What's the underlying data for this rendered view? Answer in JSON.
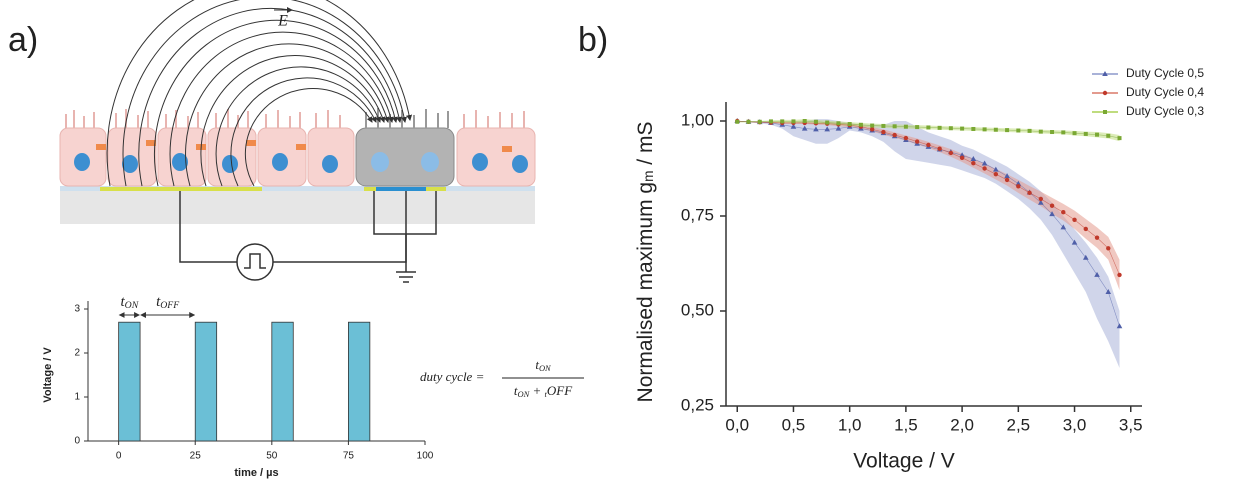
{
  "panel_labels": [
    "a)",
    "b)"
  ],
  "diagram": {
    "field_label": "E"
  },
  "formula": {
    "lhs": "duty cycle =",
    "numerator": [
      "t",
      "ON"
    ],
    "denominator": [
      "t",
      "ON",
      " + ",
      "t",
      "OFF"
    ]
  },
  "chart_data": [
    {
      "type": "bar",
      "xlabel": "time / µs",
      "ylabel": "Voltage / V",
      "color": "#6bbfd6",
      "x_start": [
        0,
        25,
        50,
        75
      ],
      "x_end": [
        7,
        32,
        57,
        82
      ],
      "values": [
        2.7,
        2.7,
        2.7,
        2.7
      ],
      "xlim": [
        -10,
        100
      ],
      "xticks": [
        0,
        25,
        50,
        75,
        100
      ],
      "ylim": [
        0,
        3
      ],
      "yticks": [
        0,
        1,
        2,
        3
      ],
      "annotations": [
        [
          "t",
          "ON"
        ],
        [
          "t",
          "OFF"
        ]
      ]
    },
    {
      "type": "line",
      "xlabel": "Voltage / V",
      "ylabel": [
        "Normalised maximum g",
        "m",
        " / mS"
      ],
      "legend": "top-right",
      "xlim": [
        -0.1,
        3.6
      ],
      "ylim": [
        0.25,
        1.05
      ],
      "xticks": [
        {
          "value": 0,
          "label": "0,0"
        },
        {
          "value": 0.5,
          "label": "0,5"
        },
        {
          "value": 1,
          "label": "1,0"
        },
        {
          "value": 1.5,
          "label": "1,5"
        },
        {
          "value": 2,
          "label": "2,0"
        },
        {
          "value": 2.5,
          "label": "2,5"
        },
        {
          "value": 3,
          "label": "3,0"
        },
        {
          "value": 3.5,
          "label": "3,5"
        }
      ],
      "yticks": [
        {
          "value": 0.25,
          "label": "0,25"
        },
        {
          "value": 0.5,
          "label": "0,50"
        },
        {
          "value": 0.75,
          "label": "0,75"
        },
        {
          "value": 1,
          "label": "1,00"
        }
      ],
      "x": [
        0,
        0.1,
        0.2,
        0.3,
        0.4,
        0.5,
        0.6,
        0.7,
        0.8,
        0.9,
        1.0,
        1.1,
        1.2,
        1.3,
        1.4,
        1.5,
        1.6,
        1.7,
        1.8,
        1.9,
        2.0,
        2.1,
        2.2,
        2.3,
        2.4,
        2.5,
        2.6,
        2.7,
        2.8,
        2.9,
        3.0,
        3.1,
        3.2,
        3.3,
        3.4
      ],
      "series": [
        {
          "name": "Duty Cycle 0,5",
          "color": "#4f5fa8",
          "band_color": "#a9b2d8",
          "marker": "triangle",
          "values": [
            1.0,
            0.998,
            0.997,
            0.995,
            0.99,
            0.985,
            0.98,
            0.978,
            0.978,
            0.98,
            0.985,
            0.98,
            0.975,
            0.968,
            0.96,
            0.95,
            0.94,
            0.932,
            0.925,
            0.918,
            0.91,
            0.9,
            0.888,
            0.872,
            0.855,
            0.835,
            0.812,
            0.785,
            0.755,
            0.72,
            0.68,
            0.64,
            0.595,
            0.55,
            0.46
          ],
          "upper": [
            1.0,
            1.0,
            1.0,
            0.998,
            0.995,
            0.995,
            1.0,
            1.005,
            1.005,
            1.0,
            0.995,
            0.99,
            0.99,
            0.99,
            1.0,
            1.0,
            0.985,
            0.97,
            0.96,
            0.95,
            0.935,
            0.925,
            0.91,
            0.895,
            0.88,
            0.86,
            0.84,
            0.815,
            0.785,
            0.75,
            0.715,
            0.68,
            0.64,
            0.59,
            0.5
          ],
          "lower": [
            1.0,
            0.996,
            0.994,
            0.99,
            0.98,
            0.96,
            0.95,
            0.94,
            0.94,
            0.955,
            0.975,
            0.97,
            0.96,
            0.945,
            0.92,
            0.9,
            0.895,
            0.89,
            0.885,
            0.88,
            0.87,
            0.86,
            0.85,
            0.835,
            0.815,
            0.795,
            0.77,
            0.74,
            0.7,
            0.65,
            0.6,
            0.55,
            0.48,
            0.42,
            0.35
          ]
        },
        {
          "name": "Duty Cycle 0,4",
          "color": "#c0392b",
          "band_color": "#e39a8e",
          "marker": "circle",
          "values": [
            1.0,
            0.998,
            0.997,
            0.996,
            0.995,
            0.995,
            0.995,
            0.994,
            0.993,
            0.991,
            0.989,
            0.985,
            0.978,
            0.971,
            0.963,
            0.955,
            0.946,
            0.937,
            0.927,
            0.916,
            0.903,
            0.889,
            0.875,
            0.86,
            0.845,
            0.828,
            0.811,
            0.795,
            0.777,
            0.76,
            0.74,
            0.716,
            0.693,
            0.665,
            0.595
          ],
          "upper": [
            1.0,
            1.0,
            0.999,
            0.998,
            0.998,
            0.998,
            0.998,
            0.998,
            0.997,
            0.996,
            0.994,
            0.99,
            0.984,
            0.978,
            0.97,
            0.962,
            0.954,
            0.945,
            0.936,
            0.926,
            0.914,
            0.901,
            0.888,
            0.874,
            0.86,
            0.845,
            0.829,
            0.814,
            0.798,
            0.782,
            0.764,
            0.742,
            0.72,
            0.695,
            0.635
          ],
          "lower": [
            1.0,
            0.996,
            0.995,
            0.994,
            0.992,
            0.992,
            0.992,
            0.99,
            0.989,
            0.986,
            0.984,
            0.98,
            0.972,
            0.964,
            0.956,
            0.948,
            0.938,
            0.929,
            0.918,
            0.906,
            0.892,
            0.877,
            0.862,
            0.846,
            0.83,
            0.811,
            0.793,
            0.776,
            0.756,
            0.738,
            0.716,
            0.69,
            0.666,
            0.635,
            0.555
          ]
        },
        {
          "name": "Duty Cycle 0,3",
          "color": "#7aa833",
          "band_color": "#bfdc7e",
          "marker": "square",
          "values": [
            0.998,
            0.998,
            0.998,
            0.999,
            0.999,
            0.999,
            1.0,
            0.998,
            0.996,
            0.994,
            0.992,
            0.99,
            0.988,
            0.987,
            0.986,
            0.985,
            0.984,
            0.983,
            0.982,
            0.981,
            0.98,
            0.979,
            0.978,
            0.977,
            0.976,
            0.975,
            0.974,
            0.972,
            0.971,
            0.97,
            0.968,
            0.966,
            0.964,
            0.961,
            0.955
          ],
          "upper": [
            1.0,
            1.0,
            1.0,
            1.002,
            1.003,
            1.003,
            1.005,
            1.003,
            1.001,
            0.999,
            0.997,
            0.995,
            0.993,
            0.992,
            0.991,
            0.99,
            0.989,
            0.988,
            0.987,
            0.986,
            0.985,
            0.984,
            0.983,
            0.982,
            0.981,
            0.98,
            0.979,
            0.977,
            0.976,
            0.975,
            0.974,
            0.972,
            0.971,
            0.968,
            0.963
          ],
          "lower": [
            0.996,
            0.996,
            0.996,
            0.996,
            0.995,
            0.995,
            0.995,
            0.993,
            0.991,
            0.989,
            0.987,
            0.985,
            0.983,
            0.982,
            0.981,
            0.98,
            0.979,
            0.978,
            0.977,
            0.976,
            0.975,
            0.974,
            0.973,
            0.972,
            0.971,
            0.97,
            0.969,
            0.967,
            0.966,
            0.965,
            0.962,
            0.96,
            0.957,
            0.954,
            0.947
          ]
        }
      ]
    }
  ]
}
